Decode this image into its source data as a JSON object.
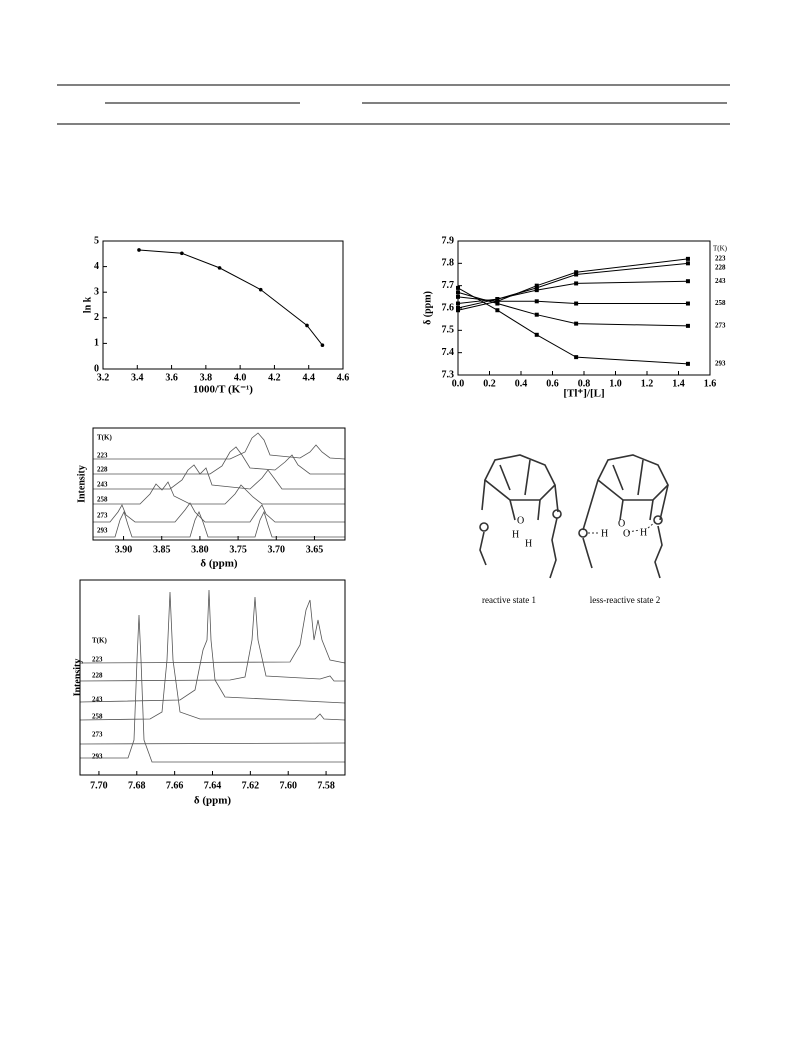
{
  "chart_data": [
    {
      "type": "line",
      "ylabel": "ln k",
      "xlabel": "1000/T (K⁻¹)",
      "marker": "circle",
      "color": "#000000",
      "x": [
        3.41,
        3.66,
        3.88,
        4.12,
        4.39,
        4.48
      ],
      "series": [
        {
          "values": [
            4.65,
            4.52,
            3.95,
            3.1,
            1.7,
            0.93
          ]
        }
      ],
      "xlim": [
        3.2,
        4.6
      ],
      "xticks": [
        3.2,
        3.4,
        3.6,
        3.8,
        {
          "value": 4,
          "label": "4.0"
        },
        4.2,
        4.4,
        4.6
      ],
      "ylim": [
        0,
        5
      ],
      "yticks": [
        0,
        1,
        2,
        3,
        4,
        5
      ]
    },
    {
      "type": "line",
      "ylabel": "δ (ppm)",
      "xlabel": "[Tl⁺]/[L]",
      "marker": "square",
      "legend_title": "T(K)",
      "x": [
        0,
        0.25,
        0.5,
        0.75,
        1.46
      ],
      "series": [
        {
          "name": "223",
          "color": "#000000",
          "values": [
            7.59,
            7.63,
            7.7,
            7.76,
            7.82
          ]
        },
        {
          "name": "228",
          "color": "#000000",
          "values": [
            7.6,
            7.64,
            7.69,
            7.75,
            7.8
          ]
        },
        {
          "name": "243",
          "color": "#000000",
          "values": [
            7.62,
            7.64,
            7.68,
            7.71,
            7.72
          ]
        },
        {
          "name": "258",
          "color": "#000000",
          "values": [
            7.65,
            7.63,
            7.63,
            7.62,
            7.62
          ]
        },
        {
          "name": "273",
          "color": "#000000",
          "values": [
            7.67,
            7.62,
            7.57,
            7.53,
            7.52
          ]
        },
        {
          "name": "293",
          "color": "#000000",
          "values": [
            7.69,
            7.59,
            7.48,
            7.38,
            7.35
          ]
        }
      ],
      "xlim": [
        0,
        1.6
      ],
      "xticks": [
        {
          "value": 0,
          "label": "0.0"
        },
        0.2,
        0.4,
        0.6,
        0.8,
        {
          "value": 1,
          "label": "1.0"
        },
        1.2,
        1.4,
        1.6
      ],
      "ylim": [
        7.3,
        7.9
      ],
      "yticks": [
        7.3,
        7.4,
        7.5,
        7.6,
        7.7,
        7.8,
        7.9
      ]
    },
    {
      "type": "spectra",
      "ylabel": "Intensity",
      "xlabel": "δ (ppm)",
      "legend_title": "T(K)",
      "trace_labels": [
        "223",
        "228",
        "243",
        "258",
        "273",
        "293"
      ],
      "xlim": [
        3.94,
        3.61
      ],
      "xticks": [
        {
          "value": 3.9,
          "label": "3.90"
        },
        3.85,
        {
          "value": 3.8,
          "label": "3.80"
        },
        3.75,
        {
          "value": 3.7,
          "label": "3.70"
        },
        3.65
      ]
    },
    {
      "type": "spectra",
      "ylabel": "Intensity",
      "xlabel": "δ (ppm)",
      "legend_title": "T(K)",
      "trace_labels": [
        "223",
        "228",
        "243",
        "258",
        "273",
        "293"
      ],
      "xlim": [
        7.71,
        7.57
      ],
      "xticks": [
        {
          "value": 7.7,
          "label": "7.70"
        },
        7.68,
        7.66,
        7.64,
        7.62,
        {
          "value": 7.6,
          "label": "7.60"
        },
        7.58
      ]
    }
  ],
  "diagram": {
    "atom_o": "O",
    "atom_h": "H",
    "labels": [
      "reactive state 1",
      "less-reactive state 2"
    ]
  }
}
